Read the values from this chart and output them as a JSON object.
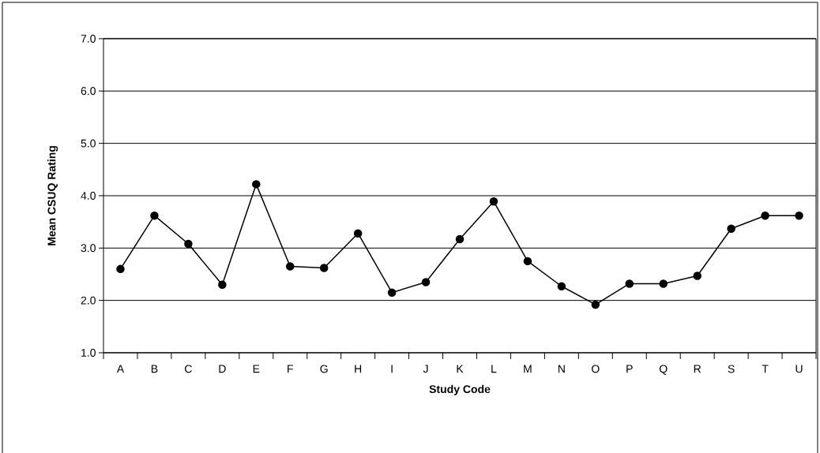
{
  "chart_data": {
    "type": "line",
    "xlabel": "Study Code",
    "ylabel": "Mean CSUQ Rating",
    "categories": [
      "A",
      "B",
      "C",
      "D",
      "E",
      "F",
      "G",
      "H",
      "I",
      "J",
      "K",
      "L",
      "M",
      "N",
      "O",
      "P",
      "Q",
      "R",
      "S",
      "T",
      "U"
    ],
    "series": [
      {
        "color": "#000000",
        "values": [
          2.6,
          3.62,
          3.08,
          2.3,
          4.22,
          2.65,
          2.62,
          3.28,
          2.15,
          2.35,
          3.17,
          3.89,
          2.75,
          2.27,
          1.92,
          2.32,
          2.32,
          2.47,
          3.37,
          3.62,
          3.62
        ]
      }
    ],
    "ylim": [
      1.0,
      7.0
    ],
    "yticks": [
      {
        "value": 1,
        "label": "1.0"
      },
      {
        "value": 2,
        "label": "2.0"
      },
      {
        "value": 3,
        "label": "3.0"
      },
      {
        "value": 4,
        "label": "4.0"
      },
      {
        "value": 5,
        "label": "5.0"
      },
      {
        "value": 6,
        "label": "6.0"
      },
      {
        "value": 7,
        "label": "7.0"
      }
    ],
    "grid": "y",
    "marker": "circle",
    "line_style": "solid"
  }
}
